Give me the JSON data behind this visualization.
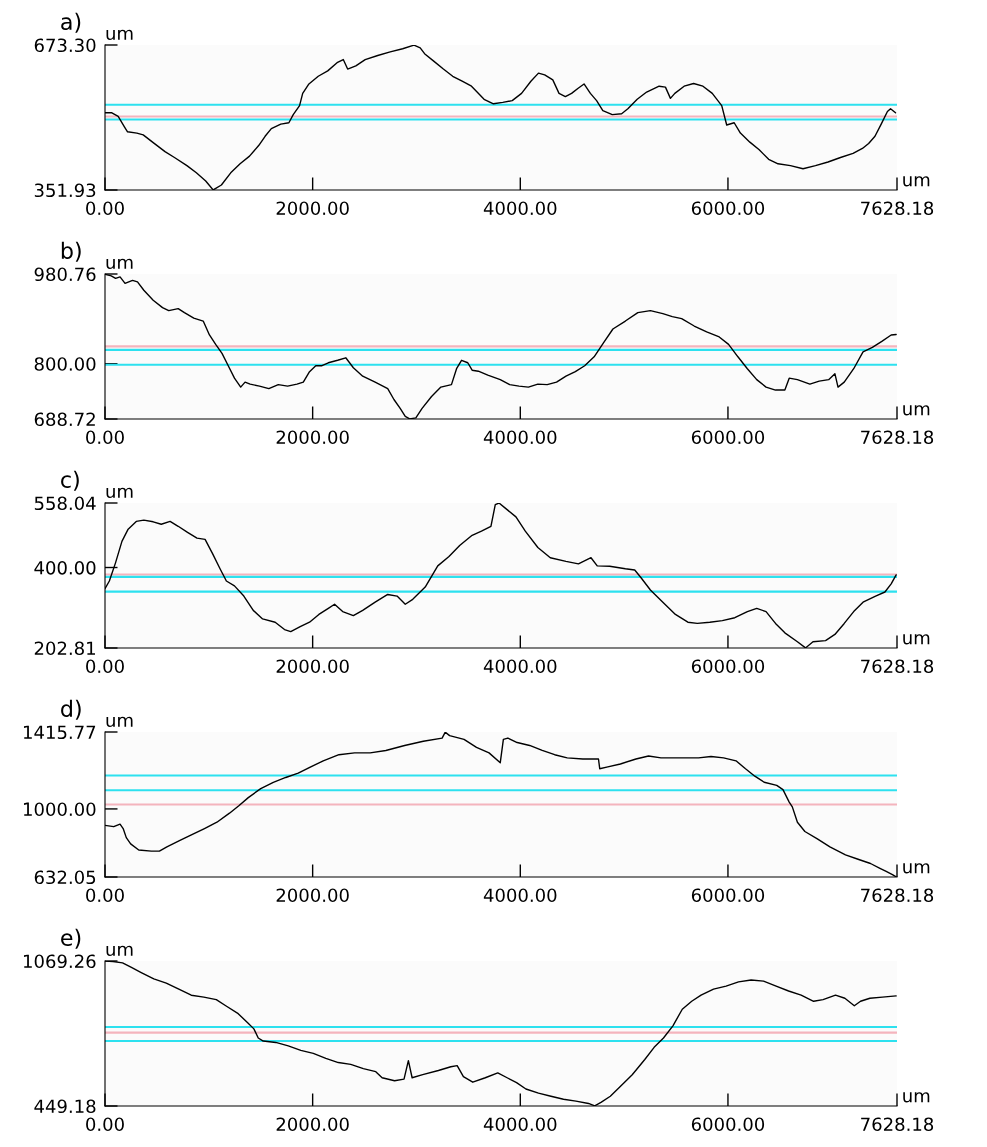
{
  "chart_data": [
    {
      "type": "line",
      "title": "a)",
      "xlabel": "um",
      "ylabel": "um",
      "grid": false,
      "xlim": [
        0,
        7628.18
      ],
      "xticks": [
        {
          "value": 0,
          "label": "0.00"
        },
        {
          "value": 2000,
          "label": "2000.00"
        },
        {
          "value": 4000,
          "label": "4000.00"
        },
        {
          "value": 6000,
          "label": "6000.00"
        },
        {
          "value": 7628.18,
          "label": "7628.18"
        }
      ],
      "ylim": [
        351.93,
        673.3
      ],
      "yticks": [
        {
          "value": 351.93,
          "label": "351.93"
        },
        {
          "value": 673.3,
          "label": "673.30"
        }
      ],
      "ref_lines": [
        {
          "axis": "y",
          "value": 541,
          "color": "#2de1ef"
        },
        {
          "axis": "y",
          "value": 515,
          "color": "#f4b4bd"
        },
        {
          "axis": "y",
          "value": 508,
          "color": "#2de1ef"
        }
      ],
      "x": [
        0,
        66,
        127,
        187,
        217,
        307,
        368,
        458,
        578,
        669,
        789,
        880,
        970,
        1042,
        1121,
        1211,
        1301,
        1392,
        1482,
        1542,
        1602,
        1693,
        1771,
        1813,
        1874,
        1904,
        1964,
        2054,
        2145,
        2235,
        2295,
        2337,
        2416,
        2506,
        2627,
        2747,
        2867,
        2976,
        3036,
        3078,
        3169,
        3259,
        3349,
        3440,
        3530,
        3651,
        3741,
        3831,
        3922,
        4012,
        4102,
        4175,
        4235,
        4313,
        4373,
        4434,
        4494,
        4554,
        4614,
        4675,
        4735,
        4795,
        4886,
        4976,
        5036,
        5126,
        5217,
        5337,
        5398,
        5446,
        5488,
        5578,
        5669,
        5759,
        5849,
        5940,
        5988,
        6060,
        6120,
        6211,
        6301,
        6392,
        6482,
        6602,
        6723,
        6843,
        6964,
        7084,
        7205,
        7295,
        7355,
        7416,
        7476,
        7536,
        7566,
        7614
      ],
      "series": [
        {
          "color": "#000000",
          "values": [
            523,
            523,
            515,
            492,
            481,
            478,
            474,
            458,
            437,
            424,
            406,
            390,
            372,
            352,
            363,
            390,
            410,
            427,
            451,
            471,
            488,
            498,
            501,
            519,
            539,
            566,
            587,
            604,
            616,
            634,
            641,
            620,
            627,
            641,
            650,
            658,
            665,
            673,
            667,
            654,
            637,
            620,
            604,
            593,
            582,
            553,
            543,
            546,
            550,
            566,
            593,
            611,
            607,
            596,
            566,
            559,
            566,
            577,
            587,
            566,
            550,
            528,
            519,
            521,
            532,
            553,
            569,
            582,
            580,
            555,
            566,
            582,
            588,
            582,
            566,
            539,
            496,
            501,
            478,
            458,
            441,
            420,
            410,
            406,
            399,
            406,
            414,
            424,
            433,
            444,
            455,
            471,
            498,
            526,
            532,
            523
          ]
        }
      ]
    },
    {
      "type": "line",
      "title": "b)",
      "xlabel": "um",
      "ylabel": "um",
      "grid": false,
      "xlim": [
        0,
        7628.18
      ],
      "xticks": [
        {
          "value": 0,
          "label": "0.00"
        },
        {
          "value": 2000,
          "label": "2000.00"
        },
        {
          "value": 4000,
          "label": "4000.00"
        },
        {
          "value": 6000,
          "label": "6000.00"
        },
        {
          "value": 7628.18,
          "label": "7628.18"
        }
      ],
      "ylim": [
        688.72,
        980.76
      ],
      "yticks": [
        {
          "value": 688.72,
          "label": "688.72"
        },
        {
          "value": 800,
          "label": "800.00"
        },
        {
          "value": 980.76,
          "label": "980.76"
        }
      ],
      "ref_lines": [
        {
          "axis": "y",
          "value": 835,
          "color": "#f4b4bd"
        },
        {
          "axis": "y",
          "value": 828,
          "color": "#2de1ef"
        },
        {
          "axis": "y",
          "value": 798,
          "color": "#2de1ef"
        }
      ],
      "x": [
        0,
        60,
        102,
        145,
        193,
        265,
        313,
        374,
        464,
        554,
        614,
        705,
        765,
        855,
        946,
        1006,
        1066,
        1127,
        1187,
        1247,
        1307,
        1349,
        1398,
        1488,
        1578,
        1669,
        1759,
        1849,
        1910,
        1970,
        2030,
        2090,
        2151,
        2241,
        2319,
        2392,
        2482,
        2602,
        2723,
        2783,
        2843,
        2892,
        2934,
        2994,
        3054,
        3145,
        3235,
        3337,
        3386,
        3434,
        3494,
        3536,
        3596,
        3687,
        3807,
        3898,
        3988,
        4078,
        4169,
        4259,
        4349,
        4440,
        4530,
        4620,
        4711,
        4801,
        4892,
        5012,
        5132,
        5253,
        5373,
        5464,
        5554,
        5675,
        5795,
        5916,
        6006,
        6096,
        6187,
        6277,
        6367,
        6458,
        6548,
        6590,
        6669,
        6789,
        6879,
        6970,
        7030,
        7060,
        7120,
        7211,
        7301,
        7391,
        7482,
        7572,
        7620
      ],
      "series": [
        {
          "color": "#000000",
          "values": [
            980,
            977,
            972,
            975,
            962,
            968,
            965,
            948,
            928,
            913,
            907,
            911,
            903,
            892,
            886,
            858,
            839,
            821,
            796,
            771,
            753,
            763,
            759,
            755,
            750,
            758,
            755,
            759,
            763,
            784,
            796,
            796,
            802,
            807,
            812,
            792,
            775,
            763,
            750,
            728,
            710,
            694,
            689,
            691,
            710,
            734,
            753,
            758,
            790,
            807,
            802,
            787,
            785,
            777,
            768,
            758,
            755,
            753,
            759,
            758,
            763,
            775,
            784,
            796,
            814,
            842,
            870,
            886,
            903,
            907,
            901,
            895,
            891,
            876,
            864,
            854,
            839,
            814,
            790,
            768,
            753,
            747,
            747,
            771,
            768,
            759,
            765,
            768,
            780,
            753,
            763,
            790,
            824,
            833,
            845,
            858,
            859
          ]
        }
      ]
    },
    {
      "type": "line",
      "title": "c)",
      "xlabel": "um",
      "ylabel": "um",
      "grid": false,
      "xlim": [
        0,
        7628.18
      ],
      "xticks": [
        {
          "value": 0,
          "label": "0.00"
        },
        {
          "value": 2000,
          "label": "2000.00"
        },
        {
          "value": 4000,
          "label": "4000.00"
        },
        {
          "value": 6000,
          "label": "6000.00"
        },
        {
          "value": 7628.18,
          "label": "7628.18"
        }
      ],
      "ylim": [
        202.81,
        558.04
      ],
      "yticks": [
        {
          "value": 202.81,
          "label": "202.81"
        },
        {
          "value": 400,
          "label": "400.00"
        },
        {
          "value": 558.04,
          "label": "558.04"
        }
      ],
      "ref_lines": [
        {
          "axis": "y",
          "value": 383,
          "color": "#f4b4bd"
        },
        {
          "axis": "y",
          "value": 377,
          "color": "#2de1ef"
        },
        {
          "axis": "y",
          "value": 341,
          "color": "#2de1ef"
        }
      ],
      "x": [
        0,
        42,
        102,
        163,
        223,
        301,
        374,
        464,
        542,
        627,
        705,
        795,
        886,
        964,
        1036,
        1108,
        1169,
        1247,
        1337,
        1428,
        1518,
        1639,
        1729,
        1789,
        1880,
        1970,
        2060,
        2151,
        2211,
        2289,
        2392,
        2482,
        2602,
        2723,
        2813,
        2892,
        2964,
        3084,
        3205,
        3313,
        3416,
        3536,
        3626,
        3717,
        3759,
        3795,
        3867,
        3958,
        4048,
        4169,
        4289,
        4440,
        4560,
        4681,
        4741,
        4861,
        5012,
        5102,
        5163,
        5253,
        5373,
        5494,
        5614,
        5705,
        5825,
        5946,
        6066,
        6187,
        6277,
        6367,
        6458,
        6548,
        6669,
        6747,
        6819,
        6940,
        7030,
        7120,
        7211,
        7301,
        7422,
        7512,
        7572,
        7620
      ],
      "series": [
        {
          "color": "#000000",
          "values": [
            348,
            367,
            412,
            464,
            494,
            513,
            516,
            512,
            506,
            513,
            501,
            486,
            472,
            469,
            434,
            397,
            367,
            355,
            330,
            295,
            274,
            266,
            248,
            243,
            255,
            266,
            285,
            300,
            310,
            292,
            282,
            295,
            315,
            334,
            330,
            310,
            322,
            352,
            404,
            427,
            454,
            479,
            489,
            501,
            554,
            558,
            543,
            524,
            489,
            449,
            424,
            415,
            409,
            424,
            404,
            403,
            397,
            394,
            375,
            345,
            315,
            285,
            266,
            263,
            266,
            270,
            277,
            292,
            300,
            292,
            263,
            240,
            218,
            203,
            218,
            221,
            236,
            263,
            292,
            315,
            330,
            340,
            360,
            382
          ]
        }
      ]
    },
    {
      "type": "line",
      "title": "d)",
      "xlabel": "um",
      "ylabel": "um",
      "grid": false,
      "xlim": [
        0,
        7628.18
      ],
      "xticks": [
        {
          "value": 0,
          "label": "0.00"
        },
        {
          "value": 2000,
          "label": "2000.00"
        },
        {
          "value": 4000,
          "label": "4000.00"
        },
        {
          "value": 6000,
          "label": "6000.00"
        },
        {
          "value": 7628.18,
          "label": "7628.18"
        }
      ],
      "ylim": [
        632.05,
        1415.77
      ],
      "yticks": [
        {
          "value": 632.05,
          "label": "632.05"
        },
        {
          "value": 1000,
          "label": "1000.00"
        },
        {
          "value": 1415.77,
          "label": "1415.77"
        }
      ],
      "ref_lines": [
        {
          "axis": "y",
          "value": 1181,
          "color": "#2de1ef"
        },
        {
          "axis": "y",
          "value": 1101,
          "color": "#2de1ef"
        },
        {
          "axis": "y",
          "value": 1024,
          "color": "#f4b4bd"
        }
      ],
      "x": [
        0,
        84,
        145,
        175,
        205,
        247,
        325,
        446,
        524,
        596,
        717,
        837,
        958,
        1078,
        1199,
        1289,
        1380,
        1500,
        1621,
        1741,
        1861,
        1982,
        2102,
        2253,
        2404,
        2554,
        2705,
        2886,
        3066,
        3247,
        3277,
        3319,
        3458,
        3578,
        3699,
        3807,
        3837,
        3880,
        3970,
        4090,
        4211,
        4331,
        4452,
        4602,
        4753,
        4765,
        4843,
        4964,
        5114,
        5235,
        5355,
        5476,
        5596,
        5717,
        5837,
        5958,
        6078,
        6169,
        6259,
        6349,
        6470,
        6530,
        6590,
        6620,
        6669,
        6741,
        6861,
        6982,
        7132,
        7253,
        7373,
        7464,
        7524,
        7584,
        7620
      ],
      "series": [
        {
          "color": "#000000",
          "values": [
            911,
            904,
            918,
            894,
            845,
            811,
            778,
            772,
            772,
            795,
            828,
            861,
            894,
            928,
            977,
            1017,
            1061,
            1110,
            1144,
            1170,
            1193,
            1227,
            1260,
            1293,
            1303,
            1303,
            1316,
            1343,
            1366,
            1383,
            1415,
            1396,
            1376,
            1333,
            1303,
            1250,
            1376,
            1383,
            1359,
            1343,
            1316,
            1293,
            1276,
            1270,
            1270,
            1217,
            1227,
            1243,
            1270,
            1286,
            1276,
            1276,
            1276,
            1276,
            1283,
            1276,
            1260,
            1217,
            1177,
            1144,
            1127,
            1104,
            1037,
            1011,
            928,
            878,
            838,
            795,
            752,
            728,
            705,
            679,
            662,
            645,
            633
          ]
        }
      ]
    },
    {
      "type": "line",
      "title": "e)",
      "xlabel": "um",
      "ylabel": "um",
      "grid": false,
      "xlim": [
        0,
        7628.18
      ],
      "xticks": [
        {
          "value": 0,
          "label": "0.00"
        },
        {
          "value": 2000,
          "label": "2000.00"
        },
        {
          "value": 4000,
          "label": "4000.00"
        },
        {
          "value": 6000,
          "label": "6000.00"
        },
        {
          "value": 7628.18,
          "label": "7628.18"
        }
      ],
      "ylim": [
        449.18,
        1069.26
      ],
      "yticks": [
        {
          "value": 449.18,
          "label": "449.18"
        },
        {
          "value": 1069.26,
          "label": "1069.26"
        }
      ],
      "ref_lines": [
        {
          "axis": "y",
          "value": 787,
          "color": "#2de1ef"
        },
        {
          "axis": "y",
          "value": 763,
          "color": "#f4b4bd"
        },
        {
          "axis": "y",
          "value": 727,
          "color": "#2de1ef"
        }
      ],
      "x": [
        0,
        78,
        169,
        259,
        349,
        470,
        590,
        711,
        831,
        952,
        1072,
        1163,
        1283,
        1374,
        1434,
        1476,
        1524,
        1645,
        1765,
        1886,
        2006,
        2127,
        2247,
        2367,
        2488,
        2608,
        2669,
        2789,
        2880,
        2922,
        2958,
        3060,
        3211,
        3331,
        3392,
        3452,
        3542,
        3663,
        3783,
        3873,
        3964,
        4054,
        4175,
        4295,
        4416,
        4536,
        4657,
        4717,
        4777,
        4867,
        4958,
        5078,
        5199,
        5289,
        5379,
        5470,
        5560,
        5651,
        5741,
        5861,
        5982,
        6102,
        6223,
        6343,
        6464,
        6584,
        6705,
        6825,
        6916,
        7036,
        7126,
        7217,
        7277,
        7367,
        7488,
        7620
      ],
      "series": [
        {
          "color": "#000000",
          "values": [
            1069,
            1067,
            1061,
            1041,
            1020,
            993,
            975,
            949,
            923,
            915,
            904,
            878,
            844,
            805,
            779,
            740,
            727,
            721,
            706,
            687,
            674,
            653,
            635,
            627,
            609,
            596,
            570,
            557,
            564,
            643,
            570,
            583,
            601,
            617,
            622,
            575,
            551,
            570,
            591,
            570,
            549,
            522,
            504,
            491,
            478,
            470,
            460,
            450,
            465,
            491,
            530,
            583,
            648,
            700,
            740,
            792,
            863,
            897,
            923,
            949,
            962,
            980,
            988,
            983,
            962,
            941,
            923,
            897,
            904,
            923,
            910,
            878,
            897,
            910,
            915,
            920
          ]
        }
      ]
    }
  ]
}
